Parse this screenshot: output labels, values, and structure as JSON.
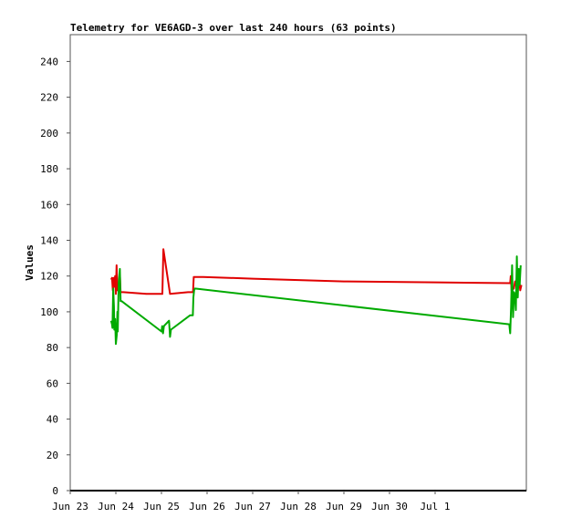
{
  "chart_data": {
    "type": "line",
    "title": "Telemetry for VE6AGD-3 over last 240 hours (63 points)",
    "xlabel": "",
    "ylabel": "Values",
    "x_tick_labels": [
      "Jun 23",
      "Jun 24",
      "Jun 25",
      "Jun 26",
      "Jun 27",
      "Jun 28",
      "Jun 29",
      "Jun 30",
      "Jul 1"
    ],
    "xlim_hours": [
      0,
      240
    ],
    "ylim": [
      0,
      255
    ],
    "y_ticks": [
      0,
      20,
      40,
      60,
      80,
      100,
      120,
      140,
      160,
      180,
      200,
      220,
      240
    ],
    "grid": false,
    "legend": "none",
    "series": [
      {
        "color": "#e00000",
        "points": [
          [
            21.5,
            118
          ],
          [
            22.0,
            119
          ],
          [
            22.4,
            112
          ],
          [
            22.8,
            119
          ],
          [
            23.2,
            114
          ],
          [
            23.6,
            120
          ],
          [
            24.0,
            110
          ],
          [
            24.4,
            126
          ],
          [
            24.8,
            112
          ],
          [
            25.2,
            113
          ],
          [
            25.6,
            111
          ],
          [
            26.1,
            121
          ],
          [
            26.5,
            111
          ],
          [
            28.0,
            111
          ],
          [
            40.0,
            110
          ],
          [
            48.5,
            110
          ],
          [
            49.0,
            135
          ],
          [
            52.5,
            110
          ],
          [
            62.0,
            111
          ],
          [
            64.6,
            111
          ],
          [
            65.0,
            119.5
          ],
          [
            70.0,
            119.5
          ],
          [
            96.0,
            118.5
          ],
          [
            144.0,
            117
          ],
          [
            192.0,
            116.5
          ],
          [
            231.5,
            116
          ],
          [
            231.8,
            120
          ],
          [
            232.2,
            112
          ],
          [
            233.4,
            113
          ],
          [
            234.1,
            117
          ],
          [
            234.5,
            115
          ],
          [
            235.0,
            119
          ],
          [
            235.6,
            113
          ],
          [
            236.2,
            118
          ],
          [
            236.8,
            112
          ],
          [
            237.4,
            115
          ]
        ]
      },
      {
        "color": "#00aa00",
        "points": [
          [
            21.5,
            95
          ],
          [
            22.0,
            93
          ],
          [
            22.2,
            91
          ],
          [
            22.6,
            113
          ],
          [
            23.0,
            103
          ],
          [
            23.2,
            90
          ],
          [
            23.6,
            96
          ],
          [
            24.0,
            82
          ],
          [
            24.5,
            87
          ],
          [
            24.8,
            100
          ],
          [
            25.0,
            89
          ],
          [
            25.5,
            116
          ],
          [
            26.1,
            124
          ],
          [
            26.5,
            106
          ],
          [
            27.0,
            106
          ],
          [
            48.0,
            89
          ],
          [
            48.4,
            92
          ],
          [
            48.8,
            88
          ],
          [
            49.3,
            92
          ],
          [
            52.0,
            95
          ],
          [
            52.5,
            86
          ],
          [
            53.0,
            90
          ],
          [
            63.0,
            98
          ],
          [
            64.5,
            98
          ],
          [
            64.8,
            108
          ],
          [
            65.2,
            112
          ],
          [
            65.6,
            113
          ],
          [
            231.0,
            93
          ],
          [
            231.5,
            88
          ],
          [
            232.0,
            103
          ],
          [
            232.5,
            126
          ],
          [
            233.0,
            97
          ],
          [
            233.5,
            111
          ],
          [
            234.0,
            109
          ],
          [
            234.5,
            101
          ],
          [
            235.0,
            131
          ],
          [
            235.5,
            108
          ],
          [
            236.0,
            124
          ],
          [
            236.5,
            115
          ],
          [
            237.0,
            126
          ]
        ]
      }
    ]
  }
}
